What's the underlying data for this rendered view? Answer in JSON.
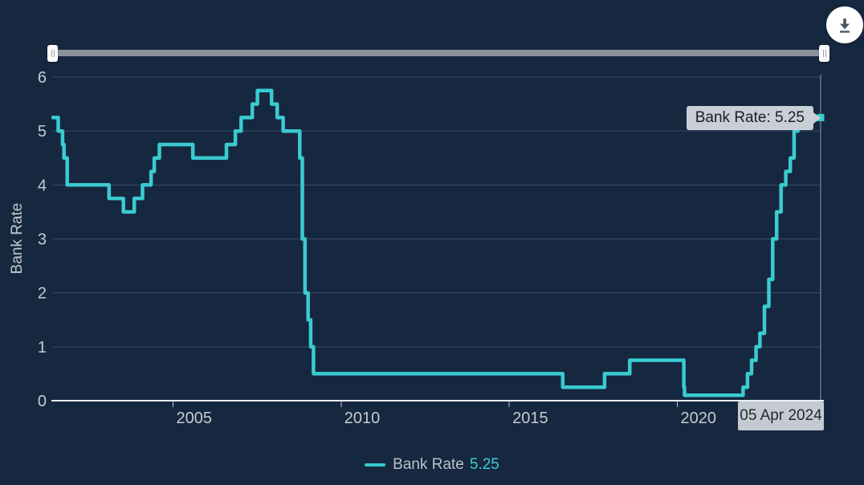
{
  "colors": {
    "background": "#162840",
    "line": "#3acbd1",
    "gridline": "rgba(255,255,255,0.16)",
    "axis_line": "#e9edf1",
    "tick_text": "#c6cacf",
    "tooltip_bg": "#c9cfd7",
    "date_label_bg": "#c4cad2",
    "slider_track": "#8c929b",
    "download_icon": "#4a5560"
  },
  "toolbar": {
    "download_icon": "arrow-down-to-line"
  },
  "chart_data": {
    "type": "line",
    "step": "hv",
    "title": "",
    "xlabel": "",
    "ylabel": "Bank Rate",
    "ylim": [
      0,
      6
    ],
    "y_ticks": [
      0,
      1,
      2,
      3,
      4,
      5,
      6
    ],
    "x_ticks": [
      2005,
      2010,
      2015,
      2020
    ],
    "x_range": [
      "2001-06-06",
      "2024-04-05"
    ],
    "grid": true,
    "legend_position": "bottom",
    "series": [
      {
        "name": "Bank Rate",
        "color": "#3acbd1",
        "points": [
          [
            "2001-05-10",
            5.25
          ],
          [
            "2001-08-02",
            5.0
          ],
          [
            "2001-09-18",
            4.75
          ],
          [
            "2001-10-04",
            4.5
          ],
          [
            "2001-11-08",
            4.0
          ],
          [
            "2003-02-06",
            3.75
          ],
          [
            "2003-07-10",
            3.5
          ],
          [
            "2003-11-06",
            3.75
          ],
          [
            "2004-02-05",
            4.0
          ],
          [
            "2004-05-06",
            4.25
          ],
          [
            "2004-06-10",
            4.5
          ],
          [
            "2004-08-05",
            4.75
          ],
          [
            "2005-08-04",
            4.5
          ],
          [
            "2006-08-03",
            4.75
          ],
          [
            "2006-11-09",
            5.0
          ],
          [
            "2007-01-11",
            5.25
          ],
          [
            "2007-05-10",
            5.5
          ],
          [
            "2007-07-05",
            5.75
          ],
          [
            "2007-12-06",
            5.5
          ],
          [
            "2008-02-07",
            5.25
          ],
          [
            "2008-04-10",
            5.0
          ],
          [
            "2008-10-08",
            4.5
          ],
          [
            "2008-11-06",
            3.0
          ],
          [
            "2008-12-04",
            2.0
          ],
          [
            "2009-01-08",
            1.5
          ],
          [
            "2009-02-05",
            1.0
          ],
          [
            "2009-03-05",
            0.5
          ],
          [
            "2016-08-04",
            0.25
          ],
          [
            "2017-11-02",
            0.5
          ],
          [
            "2018-08-02",
            0.75
          ],
          [
            "2020-03-11",
            0.25
          ],
          [
            "2020-03-19",
            0.1
          ],
          [
            "2021-12-16",
            0.25
          ],
          [
            "2022-02-03",
            0.5
          ],
          [
            "2022-03-17",
            0.75
          ],
          [
            "2022-05-05",
            1.0
          ],
          [
            "2022-06-16",
            1.25
          ],
          [
            "2022-08-04",
            1.75
          ],
          [
            "2022-09-22",
            2.25
          ],
          [
            "2022-11-03",
            3.0
          ],
          [
            "2022-12-15",
            3.5
          ],
          [
            "2023-02-02",
            4.0
          ],
          [
            "2023-03-23",
            4.25
          ],
          [
            "2023-05-11",
            4.5
          ],
          [
            "2023-06-22",
            5.0
          ],
          [
            "2023-08-03",
            5.25
          ],
          [
            "2024-04-05",
            5.25
          ]
        ]
      }
    ],
    "last_value": 5.25,
    "tooltip_label": "Bank Rate: 5.25",
    "date_label": "05 Apr 2024",
    "legend": {
      "name": "Bank Rate",
      "value": "5.25"
    }
  }
}
